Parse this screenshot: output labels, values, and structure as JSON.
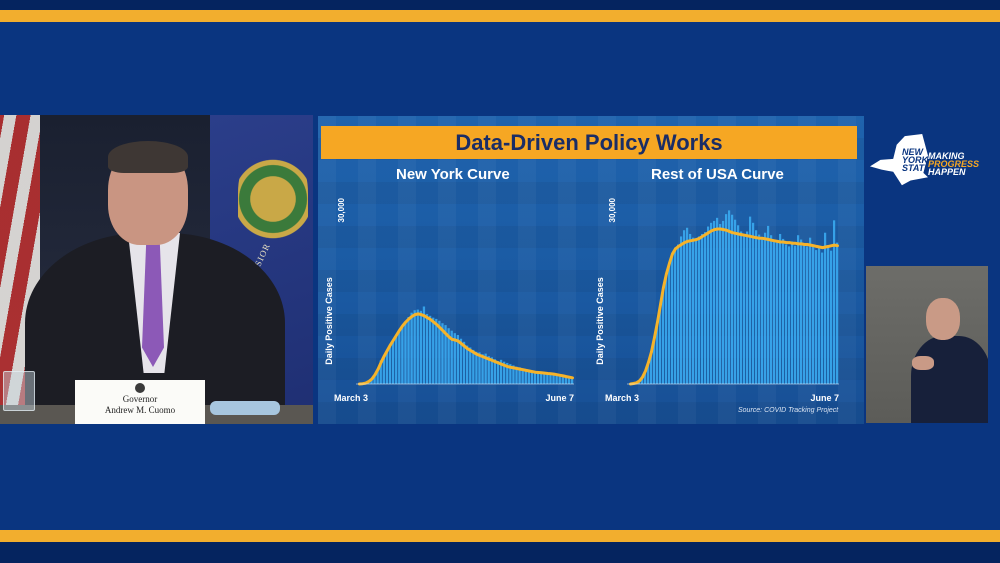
{
  "slide": {
    "title": "Data-Driven Policy Works",
    "source": "Source: COVID Tracking Project"
  },
  "speaker": {
    "nameplate_title": "Governor",
    "nameplate_name": "Andrew M. Cuomo",
    "flag_motto": "EXCELSIOR"
  },
  "logo": {
    "word1": "NEW",
    "word2": "YORK",
    "word3": "STATE",
    "slogan1": "MAKING",
    "slogan2": "PROGRESS",
    "slogan3": "HAPPEN"
  },
  "colors": {
    "background": "#0a3580",
    "gold": "#f2ae2e",
    "bar": "#3aaaf0",
    "curve": "#f6b32a"
  },
  "chart_data": [
    {
      "type": "bar",
      "title": "New York Curve",
      "ylabel": "Daily Positive Cases",
      "ytick": "30,000",
      "xlabel_start": "March 3",
      "xlabel_end": "June 7",
      "ylim": [
        0,
        30000
      ],
      "bars": [
        0,
        50,
        150,
        400,
        800,
        1500,
        2500,
        3800,
        4500,
        5200,
        6300,
        7000,
        7800,
        8500,
        9400,
        10000,
        10800,
        11500,
        11900,
        12000,
        11800,
        12500,
        11300,
        11000,
        10700,
        10500,
        10200,
        9800,
        9500,
        9000,
        8600,
        8200,
        7900,
        7300,
        6800,
        6200,
        5900,
        5500,
        5200,
        5100,
        4800,
        4900,
        4500,
        4300,
        4000,
        3700,
        3900,
        3600,
        3400,
        3200,
        3000,
        2800,
        2700,
        2500,
        2300,
        2200,
        2100,
        2000,
        1900,
        1800,
        1700,
        1600,
        1500,
        1400,
        1300,
        1200,
        1100,
        1000,
        900,
        800
      ],
      "curve": [
        0,
        50,
        150,
        400,
        800,
        1500,
        2400,
        3500,
        4500,
        5400,
        6300,
        7100,
        7900,
        8700,
        9400,
        10000,
        10500,
        10900,
        11200,
        11300,
        11200,
        11000,
        10700,
        10400,
        10000,
        9600,
        9100,
        8600,
        8100,
        7600,
        7200,
        7100,
        6900,
        6500,
        6100,
        5700,
        5400,
        5100,
        4800,
        4600,
        4400,
        4200,
        4000,
        3800,
        3600,
        3400,
        3200,
        3000,
        2800,
        2700,
        2600,
        2500,
        2400,
        2300,
        2200,
        2100,
        2000,
        1900,
        1850,
        1800,
        1750,
        1700,
        1650,
        1600,
        1500,
        1400,
        1300,
        1200,
        1100,
        1000
      ]
    },
    {
      "type": "bar",
      "title": "Rest of USA Curve",
      "ylabel": "Daily Positive Cases",
      "ytick": "30,000",
      "xlabel_start": "March 3",
      "xlabel_end": "June 7",
      "ylim": [
        0,
        30000
      ],
      "bars": [
        0,
        80,
        200,
        500,
        1100,
        2100,
        3500,
        5200,
        7500,
        10000,
        12800,
        15600,
        17800,
        19500,
        21000,
        22000,
        22500,
        23800,
        24800,
        25200,
        24200,
        23600,
        23400,
        23800,
        24200,
        24500,
        25400,
        26000,
        26300,
        26800,
        25800,
        26300,
        27400,
        28000,
        27300,
        26500,
        25600,
        24600,
        24100,
        24600,
        27000,
        26000,
        24800,
        24100,
        23700,
        24400,
        25500,
        24000,
        23000,
        22800,
        24200,
        23400,
        22500,
        22200,
        23000,
        22300,
        24000,
        23300,
        22600,
        22200,
        23600,
        22500,
        21600,
        22100,
        21200,
        24400,
        22200,
        21500,
        26400,
        22800
      ],
      "curve": [
        0,
        80,
        200,
        500,
        1100,
        2100,
        3500,
        5200,
        7500,
        10000,
        12800,
        15600,
        17800,
        19500,
        21000,
        21800,
        22200,
        22500,
        22800,
        23000,
        23100,
        23200,
        23300,
        23500,
        23800,
        24100,
        24400,
        24700,
        24900,
        25000,
        25000,
        24900,
        24800,
        24600,
        24400,
        24300,
        24200,
        24100,
        24000,
        23900,
        23800,
        23700,
        23600,
        23500,
        23500,
        23400,
        23300,
        23200,
        23100,
        23000,
        22900,
        22900,
        22800,
        22800,
        22700,
        22700,
        22600,
        22600,
        22500,
        22500,
        22400,
        22300,
        22200,
        22100,
        22000,
        22100,
        22200,
        22300,
        22400,
        22300
      ]
    }
  ]
}
